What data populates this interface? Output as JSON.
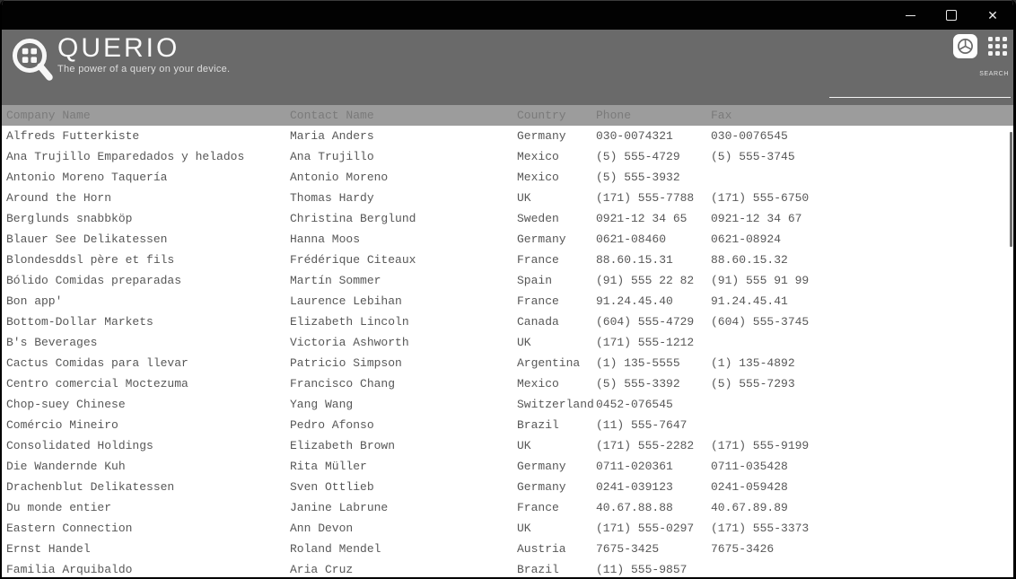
{
  "window": {
    "title_bar": {
      "close_glyph": "✕"
    }
  },
  "header": {
    "app_name": "QUERIO",
    "tagline": "The power of a query on your device.",
    "search": {
      "label": "SEARCH",
      "value": ""
    },
    "icon_names": [
      "magnifier-grid-logo",
      "settings-icon",
      "apps-grid-icon"
    ]
  },
  "table": {
    "columns": [
      "Company Name",
      "Contact Name",
      "Country",
      "Phone",
      "Fax"
    ],
    "rows": [
      [
        "Alfreds Futterkiste",
        "Maria Anders",
        "Germany",
        "030-0074321",
        "030-0076545"
      ],
      [
        "Ana Trujillo Emparedados y helados",
        "Ana Trujillo",
        "Mexico",
        "(5) 555-4729",
        "(5) 555-3745"
      ],
      [
        "Antonio Moreno Taquería",
        "Antonio Moreno",
        "Mexico",
        "(5) 555-3932",
        ""
      ],
      [
        "Around the Horn",
        "Thomas Hardy",
        "UK",
        "(171) 555-7788",
        "(171) 555-6750"
      ],
      [
        "Berglunds snabbköp",
        "Christina Berglund",
        "Sweden",
        "0921-12 34 65",
        "0921-12 34 67"
      ],
      [
        "Blauer See Delikatessen",
        "Hanna Moos",
        "Germany",
        "0621-08460",
        "0621-08924"
      ],
      [
        "Blondesddsl père et fils",
        "Frédérique Citeaux",
        "France",
        "88.60.15.31",
        "88.60.15.32"
      ],
      [
        "Bólido Comidas preparadas",
        "Martín Sommer",
        "Spain",
        "(91) 555 22 82",
        "(91) 555 91 99"
      ],
      [
        "Bon app'",
        "Laurence Lebihan",
        "France",
        "91.24.45.40",
        "91.24.45.41"
      ],
      [
        "Bottom-Dollar Markets",
        "Elizabeth Lincoln",
        "Canada",
        "(604) 555-4729",
        "(604) 555-3745"
      ],
      [
        "B's Beverages",
        "Victoria Ashworth",
        "UK",
        "(171) 555-1212",
        ""
      ],
      [
        "Cactus Comidas para llevar",
        "Patricio Simpson",
        "Argentina",
        "(1) 135-5555",
        "(1) 135-4892"
      ],
      [
        "Centro comercial Moctezuma",
        "Francisco Chang",
        "Mexico",
        "(5) 555-3392",
        "(5) 555-7293"
      ],
      [
        "Chop-suey Chinese",
        "Yang Wang",
        "Switzerland",
        "0452-076545",
        ""
      ],
      [
        "Comércio Mineiro",
        "Pedro Afonso",
        "Brazil",
        "(11) 555-7647",
        ""
      ],
      [
        "Consolidated Holdings",
        "Elizabeth Brown",
        "UK",
        "(171) 555-2282",
        "(171) 555-9199"
      ],
      [
        "Die Wandernde Kuh",
        "Rita Müller",
        "Germany",
        "0711-020361",
        "0711-035428"
      ],
      [
        "Drachenblut Delikatessen",
        "Sven Ottlieb",
        "Germany",
        "0241-039123",
        "0241-059428"
      ],
      [
        "Du monde entier",
        "Janine Labrune",
        "France",
        "40.67.88.88",
        "40.67.89.89"
      ],
      [
        "Eastern Connection",
        "Ann Devon",
        "UK",
        "(171) 555-0297",
        "(171) 555-3373"
      ],
      [
        "Ernst Handel",
        "Roland Mendel",
        "Austria",
        "7675-3425",
        "7675-3426"
      ],
      [
        "Familia Arquibaldo",
        "Aria Cruz",
        "Brazil",
        "(11) 555-9857",
        ""
      ]
    ]
  },
  "colors": {
    "title_bar": "#020202",
    "banner": "#6A6A6A",
    "table_header_bg": "#9C9C9C",
    "table_header_text": "#7A7A7A",
    "row_text": "#575757",
    "row_bg": "#FFFFFF",
    "scrollbar_thumb": "#6E6E6E",
    "logo_white": "#F7F7F7"
  }
}
